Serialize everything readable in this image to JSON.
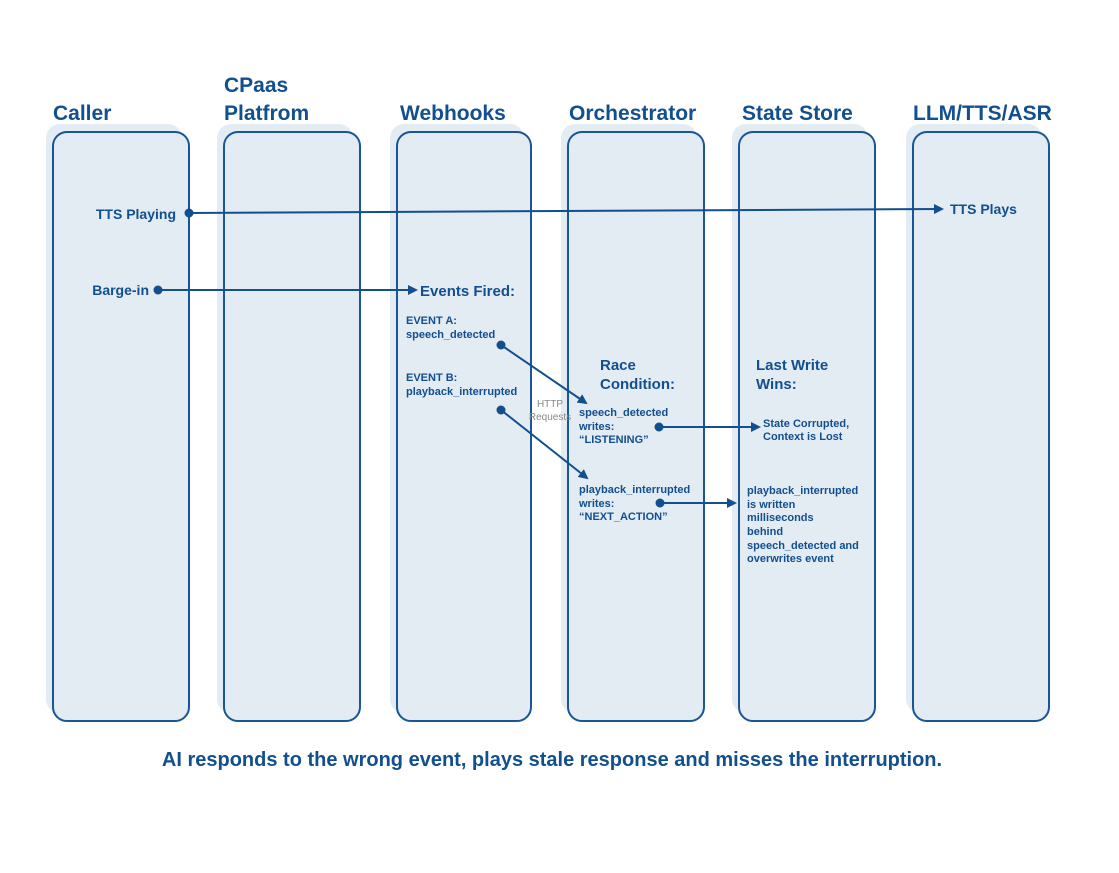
{
  "lanes": [
    "Caller",
    "CPaas",
    "Platfrom",
    "Webhooks",
    "Orchestrator",
    "State Store",
    "LLM/TTS/ASR"
  ],
  "caller": {
    "tts_playing": "TTS Playing",
    "barge_in": "Barge-in"
  },
  "llm": {
    "tts_plays": "TTS Plays"
  },
  "webhooks": {
    "events_fired": "Events Fired:",
    "event_a_label": "EVENT A:",
    "event_a_name": "speech_detected",
    "event_b_label": "EVENT B:",
    "event_b_name": "playback_interrupted",
    "http_1": "HTTP",
    "http_2": "Requests"
  },
  "orchestrator": {
    "race_1": "Race",
    "race_2": "Condition:",
    "write_a": [
      "speech_detected",
      "writes:",
      "“LISTENING”"
    ],
    "write_b": [
      "playback_interrupted",
      "writes:",
      "“NEXT_ACTION”"
    ]
  },
  "state_store": {
    "wins_1": "Last Write",
    "wins_2": "Wins:",
    "corrupted": [
      "State Corrupted,",
      "Context is Lost"
    ],
    "explanation": [
      "playback_interrupted",
      "is written",
      "milliseconds",
      "behind",
      "speech_detected and",
      "overwrites event"
    ]
  },
  "caption": "AI responds to the wrong event, plays stale response and misses the interruption.",
  "colors": {
    "primary": "#124f8f",
    "lane_fill": "#e3ebf3",
    "muted": "#888888"
  }
}
